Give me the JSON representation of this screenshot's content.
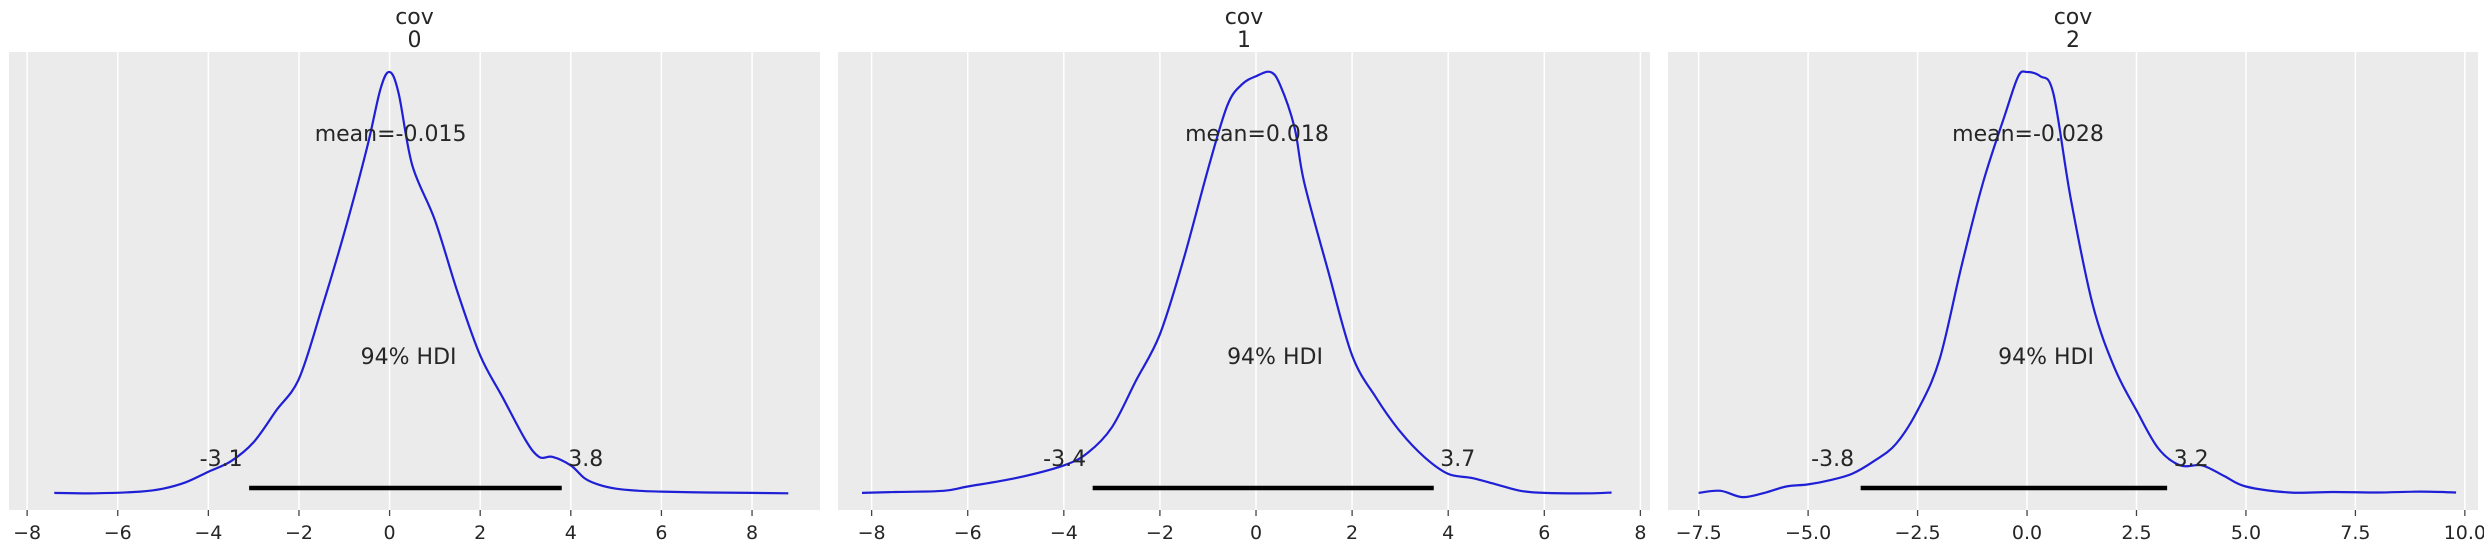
{
  "chart_data": [
    {
      "type": "area",
      "title_lines": [
        "cov",
        "0"
      ],
      "xlim": [
        -8.4,
        9.5
      ],
      "xticks": [
        -8,
        -6,
        -4,
        -2,
        0,
        2,
        4,
        6,
        8
      ],
      "xtick_labels": [
        "−8",
        "−6",
        "−4",
        "−2",
        "0",
        "2",
        "4",
        "6",
        "8"
      ],
      "mean_label": "mean=-0.015",
      "hdi_label": "94% HDI",
      "hdi": [
        -3.1,
        3.8
      ],
      "hdi_low_label": "-3.1",
      "hdi_high_label": "3.8",
      "density": {
        "x": [
          -7.4,
          -6.5,
          -5.5,
          -5.0,
          -4.5,
          -4.0,
          -3.5,
          -3.0,
          -2.5,
          -2.0,
          -1.5,
          -1.0,
          -0.5,
          -0.2,
          0.0,
          0.2,
          0.5,
          1.0,
          1.5,
          2.0,
          2.5,
          3.0,
          3.3,
          3.6,
          4.0,
          4.3,
          4.6,
          5.0,
          5.5,
          6.0,
          7.0,
          8.0,
          8.8
        ],
        "y": [
          0.005,
          0.004,
          0.008,
          0.015,
          0.03,
          0.055,
          0.08,
          0.125,
          0.2,
          0.275,
          0.44,
          0.62,
          0.82,
          0.96,
          1.0,
          0.95,
          0.78,
          0.65,
          0.48,
          0.33,
          0.23,
          0.13,
          0.09,
          0.09,
          0.07,
          0.04,
          0.025,
          0.015,
          0.01,
          0.008,
          0.006,
          0.005,
          0.004
        ]
      }
    },
    {
      "type": "area",
      "title_lines": [
        "cov",
        "1"
      ],
      "xlim": [
        -8.7,
        8.2
      ],
      "xticks": [
        -8,
        -6,
        -4,
        -2,
        0,
        2,
        4,
        6,
        8
      ],
      "xtick_labels": [
        "−8",
        "−6",
        "−4",
        "−2",
        "0",
        "2",
        "4",
        "6",
        "8"
      ],
      "mean_label": "mean=0.018",
      "hdi_label": "94% HDI",
      "hdi": [
        -3.4,
        3.7
      ],
      "hdi_low_label": "-3.4",
      "hdi_high_label": "3.7",
      "density": {
        "x": [
          -8.2,
          -7.5,
          -6.5,
          -6.0,
          -5.0,
          -4.0,
          -3.5,
          -3.0,
          -2.5,
          -2.0,
          -1.5,
          -1.0,
          -0.6,
          -0.3,
          0.0,
          0.3,
          0.5,
          0.8,
          1.0,
          1.5,
          2.0,
          2.5,
          3.0,
          3.5,
          4.0,
          4.5,
          5.0,
          5.5,
          6.0,
          7.0,
          7.4
        ],
        "y": [
          0.005,
          0.007,
          0.01,
          0.02,
          0.04,
          0.07,
          0.1,
          0.16,
          0.27,
          0.38,
          0.56,
          0.77,
          0.92,
          0.97,
          0.99,
          1.0,
          0.97,
          0.87,
          0.74,
          0.53,
          0.33,
          0.23,
          0.15,
          0.09,
          0.05,
          0.04,
          0.025,
          0.01,
          0.005,
          0.004,
          0.006
        ]
      }
    },
    {
      "type": "area",
      "title_lines": [
        "cov",
        "2"
      ],
      "xlim": [
        -8.2,
        10.3
      ],
      "xticks": [
        -7.5,
        -5.0,
        -2.5,
        0.0,
        2.5,
        5.0,
        7.5,
        10.0
      ],
      "xtick_labels": [
        "−7.5",
        "−5.0",
        "−2.5",
        "0.0",
        "2.5",
        "5.0",
        "7.5",
        "10.0"
      ],
      "mean_label": "mean=-0.028",
      "hdi_label": "94% HDI",
      "hdi": [
        -3.8,
        3.2
      ],
      "hdi_low_label": "-3.8",
      "hdi_high_label": "3.2",
      "density": {
        "x": [
          -7.5,
          -7.0,
          -6.5,
          -6.0,
          -5.5,
          -5.0,
          -4.5,
          -4.0,
          -3.5,
          -3.0,
          -2.5,
          -2.0,
          -1.5,
          -1.0,
          -0.5,
          -0.2,
          0.0,
          0.3,
          0.6,
          1.0,
          1.5,
          2.0,
          2.5,
          3.0,
          3.5,
          4.0,
          4.5,
          5.0,
          6.0,
          7.0,
          8.0,
          9.0,
          9.8
        ],
        "y": [
          0.005,
          0.01,
          -0.005,
          0.005,
          0.02,
          0.025,
          0.035,
          0.05,
          0.08,
          0.12,
          0.2,
          0.32,
          0.54,
          0.74,
          0.9,
          0.99,
          1.0,
          0.99,
          0.95,
          0.7,
          0.45,
          0.3,
          0.2,
          0.11,
          0.07,
          0.07,
          0.045,
          0.02,
          0.006,
          0.007,
          0.006,
          0.008,
          0.006
        ]
      }
    }
  ]
}
